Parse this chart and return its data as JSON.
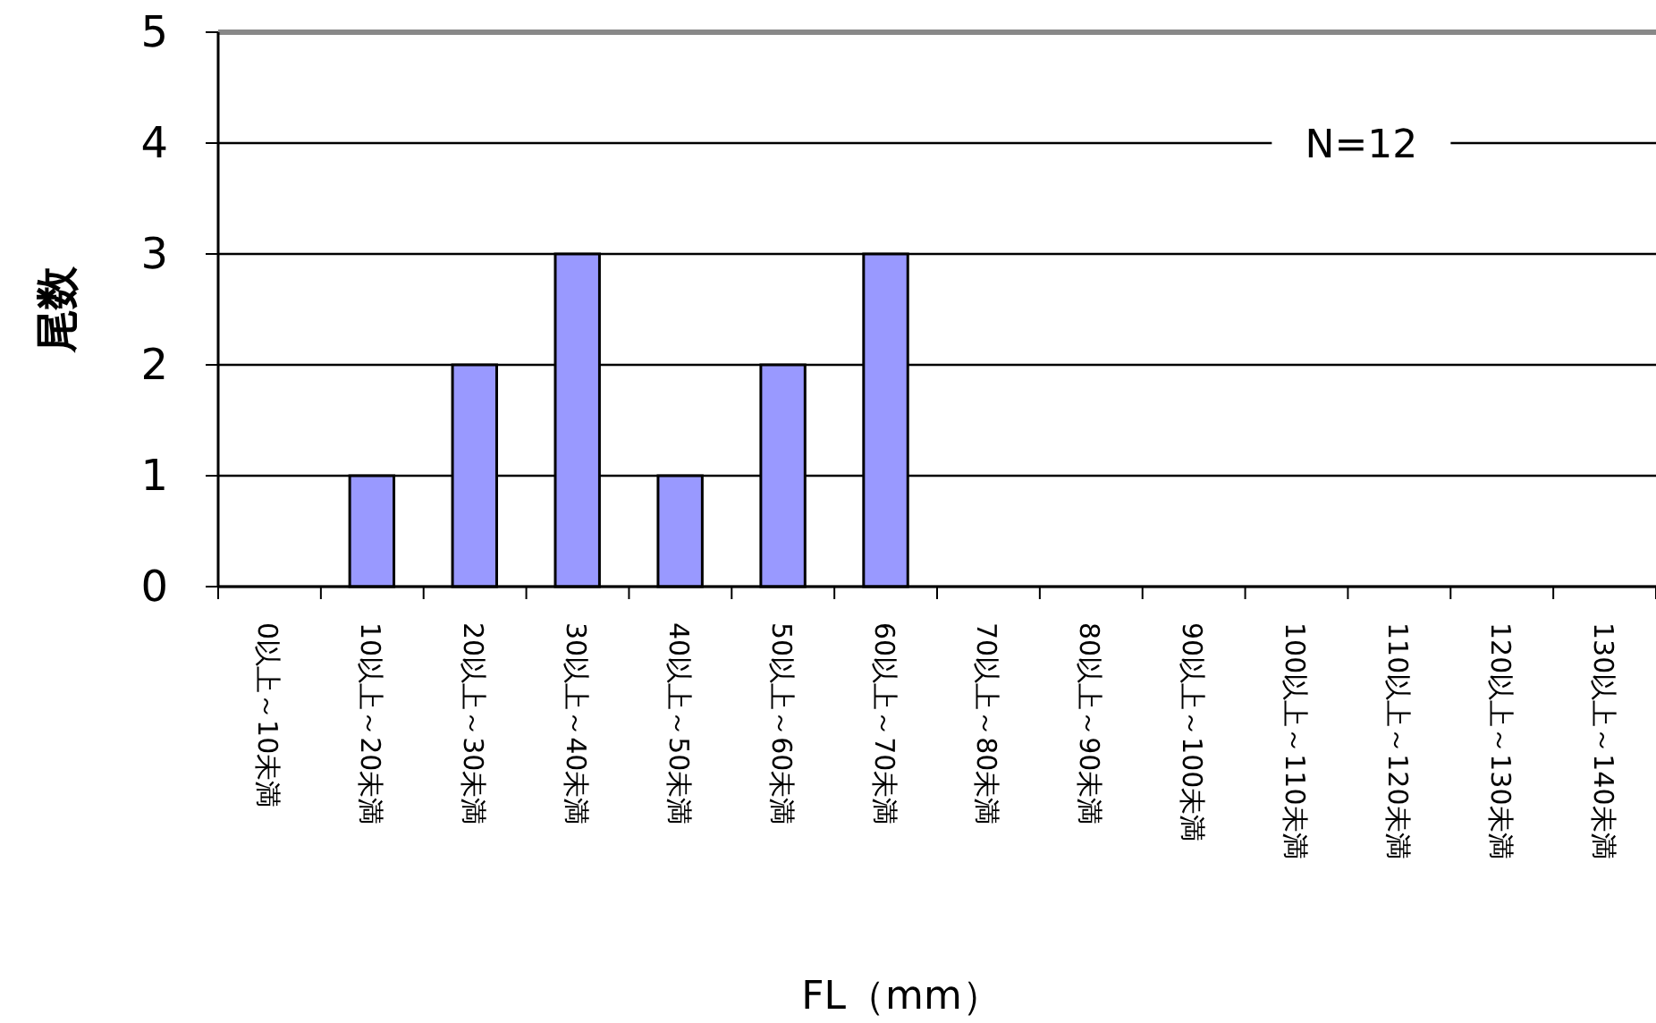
{
  "chart_data": {
    "type": "bar",
    "xlabel": "FL（mm）",
    "ylabel": "尾数",
    "categories": [
      "0以上～10未満",
      "10以上～20未満",
      "20以上～30未満",
      "30以上～40未満",
      "40以上～50未満",
      "50以上～60未満",
      "60以上～70未満",
      "70以上～80未満",
      "80以上～90未満",
      "90以上～100未満",
      "100以上～110未満",
      "110以上～120未満",
      "120以上～130未満",
      "130以上～140未満"
    ],
    "values": [
      0,
      1,
      2,
      3,
      1,
      2,
      3,
      0,
      0,
      0,
      0,
      0,
      0,
      0
    ],
    "color": "#9999ff",
    "ylim": [
      0,
      5
    ],
    "yticks": [
      0,
      1,
      2,
      3,
      4,
      5
    ],
    "grid": "y",
    "annotations": [
      "N=12"
    ]
  }
}
